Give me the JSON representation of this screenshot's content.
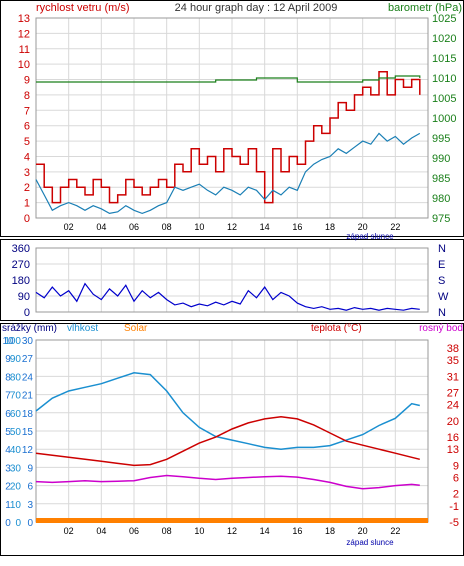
{
  "colors": {
    "wind": "#cc0000",
    "wind_avg": "#1a7fb5",
    "pressure": "#1a7f1a",
    "direction": "#0000cc",
    "rain": "#1a6fd0",
    "humidity": "#1a8fd0",
    "solar": "#ff8000",
    "temperature": "#cc0000",
    "dew_point": "#cc00cc",
    "grid": "#d9d9d9",
    "axis_text": "#333333"
  },
  "x_ticks": [
    "02",
    "04",
    "06",
    "08",
    "10",
    "12",
    "14",
    "16",
    "18",
    "20",
    "22"
  ],
  "sunset_label": "západ slunce",
  "chart_data": [
    {
      "type": "line",
      "title": "24 hour graph day : 12 April 2009",
      "left_label": "rychlost vetru (m/s)",
      "right_label": "barometr (hPa)",
      "ylim_left": [
        0,
        13
      ],
      "yticks_left": [
        "0",
        "1",
        "2",
        "3",
        "4",
        "5",
        "6",
        "7",
        "8",
        "9",
        "10",
        "11",
        "12",
        "13"
      ],
      "ylim_right": [
        975,
        1025
      ],
      "yticks_right": [
        "975",
        "980",
        "985",
        "990",
        "995",
        "1000",
        "1005",
        "1010",
        "1015",
        "1020",
        "1025"
      ],
      "xlim_hours": [
        0,
        24
      ],
      "series": [
        {
          "key": "wind_gust",
          "axis": "left",
          "x": [
            0,
            0.5,
            1,
            1.5,
            2,
            2.5,
            3,
            3.5,
            4,
            4.5,
            5,
            5.5,
            6,
            6.5,
            7,
            7.5,
            8,
            8.5,
            9,
            9.5,
            10,
            10.5,
            11,
            11.5,
            12,
            12.5,
            13,
            13.5,
            14,
            14.5,
            15,
            15.5,
            16,
            16.5,
            17,
            17.5,
            18,
            18.5,
            19,
            19.5,
            20,
            20.5,
            21,
            21.5,
            22,
            22.5,
            23,
            23.5
          ],
          "y": [
            3.5,
            2.0,
            1.0,
            2.0,
            2.5,
            2.0,
            1.5,
            2.5,
            2.0,
            1.0,
            1.5,
            2.5,
            2.0,
            1.5,
            2.0,
            2.5,
            2.0,
            3.5,
            3.0,
            4.5,
            3.5,
            4.0,
            3.0,
            4.5,
            4.0,
            3.5,
            4.5,
            3.0,
            1.0,
            4.5,
            3.0,
            4.0,
            3.5,
            5.0,
            6.0,
            5.5,
            6.5,
            7.5,
            7.0,
            8.0,
            8.5,
            8.0,
            9.5,
            8.0,
            9.0,
            8.5,
            9.0,
            8.0
          ]
        },
        {
          "key": "wind_avg",
          "axis": "left",
          "x": [
            0,
            0.5,
            1,
            1.5,
            2,
            2.5,
            3,
            3.5,
            4,
            4.5,
            5,
            5.5,
            6,
            6.5,
            7,
            7.5,
            8,
            8.5,
            9,
            9.5,
            10,
            10.5,
            11,
            11.5,
            12,
            12.5,
            13,
            13.5,
            14,
            14.5,
            15,
            15.5,
            16,
            16.5,
            17,
            17.5,
            18,
            18.5,
            19,
            19.5,
            20,
            20.5,
            21,
            21.5,
            22,
            22.5,
            23,
            23.5
          ],
          "y": [
            2.5,
            1.5,
            0.5,
            0.8,
            1.0,
            0.8,
            0.5,
            0.8,
            0.6,
            0.3,
            0.4,
            0.8,
            0.5,
            0.3,
            0.5,
            0.8,
            1.0,
            2.0,
            1.8,
            2.0,
            2.2,
            1.8,
            1.5,
            2.0,
            1.8,
            1.5,
            2.0,
            1.8,
            1.2,
            1.8,
            1.5,
            2.0,
            1.8,
            3.0,
            3.5,
            3.8,
            4.0,
            4.5,
            4.2,
            4.6,
            5.0,
            4.8,
            5.5,
            5.0,
            5.3,
            4.8,
            5.2,
            5.5
          ]
        },
        {
          "key": "pressure",
          "axis": "right",
          "x": [
            0,
            4,
            8,
            11,
            13.5,
            15,
            16,
            17,
            18,
            19,
            20,
            21,
            22,
            23,
            23.5
          ],
          "y": [
            1009,
            1009,
            1009,
            1009.5,
            1010,
            1010,
            1009,
            1009,
            1009,
            1009,
            1009.5,
            1010,
            1010.5,
            1010.5,
            1010
          ]
        }
      ]
    },
    {
      "type": "line",
      "left_label": "",
      "right_labels": [
        "N",
        "W",
        "S",
        "E",
        "N"
      ],
      "ylim_left": [
        0,
        360
      ],
      "yticks_left": [
        "0",
        "90",
        "180",
        "270",
        "360"
      ],
      "xlim_hours": [
        0,
        24
      ],
      "series": [
        {
          "key": "wind_direction",
          "x": [
            0,
            0.5,
            1,
            1.5,
            2,
            2.5,
            3,
            3.5,
            4,
            4.5,
            5,
            5.5,
            6,
            6.5,
            7,
            7.5,
            8,
            8.5,
            9,
            9.5,
            10,
            10.5,
            11,
            11.5,
            12,
            12.5,
            13,
            13.5,
            14,
            14.5,
            15,
            15.5,
            16,
            16.5,
            17,
            17.5,
            18,
            18.5,
            19,
            19.5,
            20,
            20.5,
            21,
            21.5,
            22,
            22.5,
            23,
            23.5
          ],
          "y": [
            110,
            80,
            140,
            90,
            120,
            60,
            160,
            100,
            70,
            130,
            90,
            150,
            60,
            120,
            80,
            110,
            70,
            40,
            50,
            30,
            45,
            35,
            55,
            40,
            60,
            45,
            120,
            80,
            140,
            70,
            110,
            90,
            50,
            30,
            20,
            30,
            15,
            20,
            10,
            25,
            15,
            20,
            10,
            20,
            15,
            10,
            20,
            15
          ]
        }
      ]
    },
    {
      "type": "line",
      "left_labels": [
        "srážky (mm)",
        "vlhkost",
        "Solar"
      ],
      "right_labels": [
        "teplota (°C)",
        "rosný bod"
      ],
      "ylim_rain": [
        0,
        10
      ],
      "yticks_rain": [
        "0",
        "1",
        "2",
        "3",
        "4",
        "5",
        "6",
        "7",
        "8",
        "9",
        "10"
      ],
      "ylim_humidity": [
        0,
        100
      ],
      "yticks_humidity": [
        "0",
        "10",
        "20",
        "30",
        "40",
        "50",
        "60",
        "70",
        "80",
        "90",
        "100"
      ],
      "ylim_solar": [
        0,
        30
      ],
      "yticks_solar": [
        "0",
        "3",
        "6",
        "9",
        "12",
        "15",
        "18",
        "21",
        "24",
        "27",
        "30"
      ],
      "ylim_temp": [
        -5,
        40
      ],
      "yticks_temp": [
        "-5",
        "-1",
        "2",
        "6",
        "9",
        "13",
        "16",
        "20",
        "24",
        "27",
        "31",
        "35",
        "38"
      ],
      "xlim_hours": [
        0,
        24
      ],
      "series": [
        {
          "key": "humidity",
          "x": [
            0,
            1,
            2,
            3,
            4,
            5,
            6,
            7,
            8,
            9,
            10,
            11,
            12,
            13,
            14,
            15,
            16,
            17,
            18,
            19,
            20,
            21,
            22,
            23,
            23.5
          ],
          "y": [
            61,
            68,
            72,
            74,
            76,
            79,
            82,
            81,
            72,
            60,
            52,
            47,
            45,
            43,
            41,
            40,
            41,
            41,
            42,
            45,
            48,
            53,
            57,
            65,
            64
          ]
        },
        {
          "key": "temperature",
          "x": [
            0,
            1,
            2,
            3,
            4,
            5,
            6,
            7,
            8,
            9,
            10,
            11,
            12,
            13,
            14,
            15,
            16,
            17,
            18,
            19,
            20,
            21,
            22,
            23,
            23.5
          ],
          "y": [
            12,
            11.5,
            11,
            10.5,
            10,
            9.5,
            9,
            9.2,
            10.5,
            12.5,
            14.5,
            16,
            18,
            19.5,
            20.5,
            21,
            20.5,
            19,
            17,
            15,
            14,
            13,
            12,
            11,
            10.5
          ]
        },
        {
          "key": "dew_point",
          "x": [
            0,
            1,
            2,
            3,
            4,
            5,
            6,
            7,
            8,
            9,
            10,
            11,
            12,
            13,
            14,
            15,
            16,
            17,
            18,
            19,
            20,
            21,
            22,
            23,
            23.5
          ],
          "y": [
            5,
            4.8,
            5,
            5.2,
            5,
            5.1,
            5.2,
            6,
            6.5,
            6.2,
            5.8,
            5.5,
            5.8,
            6,
            6.2,
            6.3,
            6.1,
            5.5,
            4.8,
            3.8,
            3.2,
            3.5,
            4,
            4.3,
            4.1
          ]
        },
        {
          "key": "solar",
          "x": [
            0,
            24
          ],
          "y": [
            0,
            0
          ]
        }
      ]
    }
  ]
}
